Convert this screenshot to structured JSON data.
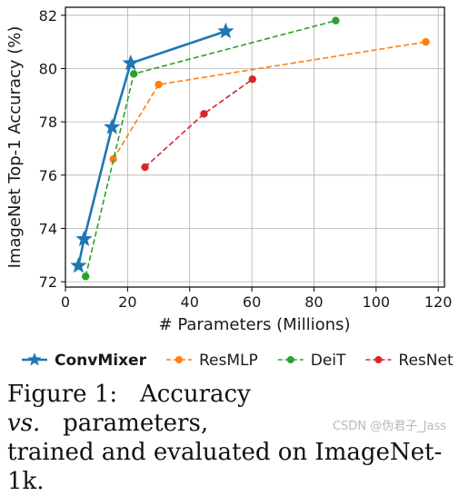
{
  "chart_data": {
    "type": "line",
    "xlabel": "# Parameters (Millions)",
    "ylabel": "ImageNet Top-1 Accuracy (%)",
    "xlim": [
      0,
      122
    ],
    "ylim": [
      71.8,
      82.3
    ],
    "xticks": [
      0,
      20,
      40,
      60,
      80,
      100,
      120
    ],
    "yticks": [
      72,
      74,
      76,
      78,
      80,
      82
    ],
    "grid": true,
    "legend_position": "bottom",
    "series": [
      {
        "name": "ConvMixer",
        "color": "#1f77b4",
        "marker": "star",
        "linestyle": "solid",
        "bold": true,
        "x": [
          4.2,
          6.0,
          15.0,
          21.0,
          51.6
        ],
        "y": [
          72.6,
          73.6,
          77.8,
          80.2,
          81.4
        ]
      },
      {
        "name": "ResMLP",
        "color": "#ff7f0e",
        "marker": "circle",
        "linestyle": "dashed",
        "bold": false,
        "x": [
          15.4,
          30.0,
          116.0
        ],
        "y": [
          76.6,
          79.4,
          81.0
        ]
      },
      {
        "name": "DeiT",
        "color": "#2ca02c",
        "marker": "circle",
        "linestyle": "dashed",
        "bold": false,
        "x": [
          6.5,
          22.0,
          87.0
        ],
        "y": [
          72.2,
          79.8,
          81.8
        ]
      },
      {
        "name": "ResNet",
        "color": "#d62728",
        "marker": "circle",
        "linestyle": "dashed",
        "bold": false,
        "x": [
          25.6,
          44.6,
          60.2
        ],
        "y": [
          76.3,
          78.3,
          79.6
        ]
      }
    ]
  },
  "caption": {
    "figure_label": "Figure 1:",
    "text_before": "Accuracy",
    "vs": "vs.",
    "text_after": "parameters,",
    "line2": "trained and evaluated on ImageNet-1k."
  },
  "watermark": "CSDN @伪君子_Jass"
}
